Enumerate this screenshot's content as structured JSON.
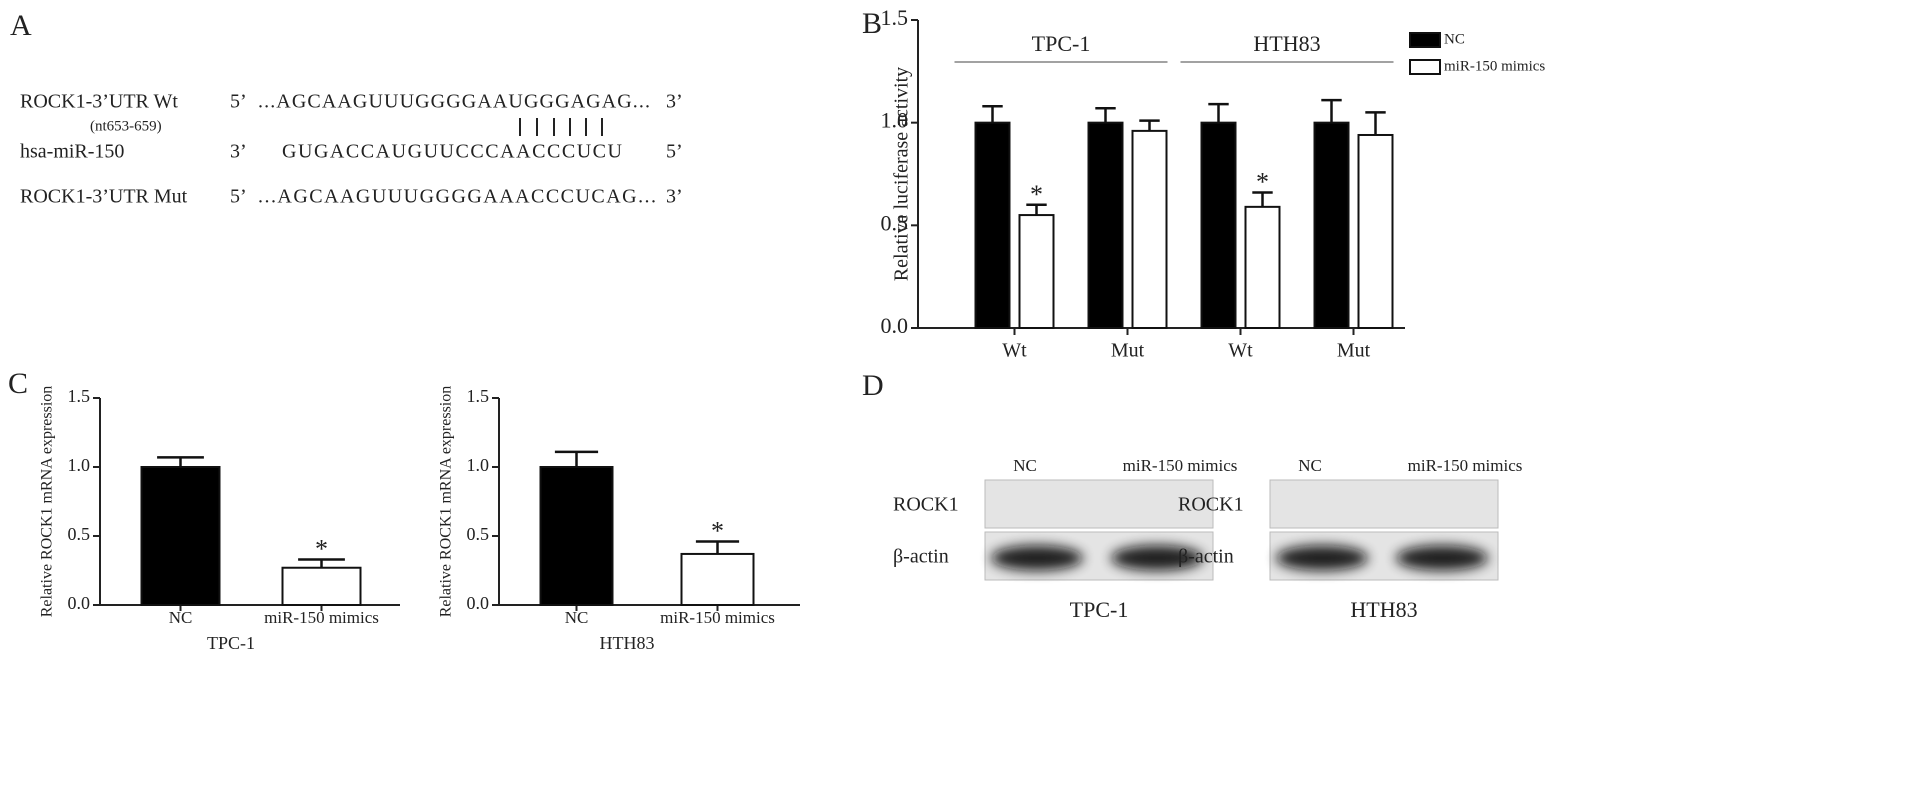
{
  "panel_labels": {
    "A": "A",
    "B": "B",
    "C": "C",
    "D": "D"
  },
  "sequences": [
    {
      "name": "ROCK1-3’UTR Wt",
      "position": "(nt653-659)",
      "end5": "5’",
      "seq": "...AGCAAGUUUGGGGAAUGGGAGAG...",
      "end3": "3’"
    },
    {
      "name": "hsa-miR-150",
      "end5": "3’",
      "seq": "GUGACCAUGUUCCCAACCCUCU",
      "end3": "5’"
    },
    {
      "name": "ROCK1-3’UTR Mut",
      "end5": "5’",
      "seq": "...AGCAAGUUUGGGGAAACCCUCAG...",
      "end3": "3’"
    }
  ],
  "chart_data": [
    {
      "type": "grouped_bar",
      "ylabel": "Relative luciferase activity",
      "groups": [
        {
          "name": "TPC-1",
          "categories": [
            "Wt",
            "Mut"
          ]
        },
        {
          "name": "HTH83",
          "categories": [
            "Wt",
            "Mut"
          ]
        }
      ],
      "series": [
        {
          "name": "NC",
          "color": "#000000",
          "values": [
            1.0,
            1.0,
            1.0,
            1.0
          ],
          "errors": [
            0.08,
            0.07,
            0.09,
            0.11
          ],
          "significance": [
            null,
            null,
            null,
            null
          ]
        },
        {
          "name": "miR-150 mimics",
          "color": "#ffffff",
          "values": [
            0.55,
            0.96,
            0.59,
            0.94
          ],
          "errors": [
            0.05,
            0.05,
            0.07,
            0.11
          ],
          "significance": [
            "*",
            null,
            "*",
            null
          ]
        }
      ],
      "ylim": [
        0,
        1.5
      ],
      "yticks": [
        {
          "value": 0,
          "label": "0.0"
        },
        0.5,
        {
          "value": 1,
          "label": "1.0"
        },
        1.5
      ],
      "legend": "top-right"
    },
    {
      "type": "bar",
      "ylabel": "Relative ROCK1 mRNA expression",
      "xlabel": "TPC-1",
      "categories": [
        "NC",
        "miR-150 mimics"
      ],
      "values": [
        1.0,
        0.27
      ],
      "errors": [
        0.07,
        0.06
      ],
      "significance": [
        null,
        "*"
      ],
      "colors": [
        "#000000",
        "#ffffff"
      ],
      "ylim": [
        0,
        1.5
      ],
      "yticks": [
        {
          "value": 0,
          "label": "0.0"
        },
        0.5,
        {
          "value": 1,
          "label": "1.0"
        },
        1.5
      ]
    },
    {
      "type": "bar",
      "ylabel": "Relative ROCK1 mRNA expression",
      "xlabel": "HTH83",
      "categories": [
        "NC",
        "miR-150 mimics"
      ],
      "values": [
        1.0,
        0.37
      ],
      "errors": [
        0.11,
        0.09
      ],
      "significance": [
        null,
        "*"
      ],
      "colors": [
        "#000000",
        "#ffffff"
      ],
      "ylim": [
        0,
        1.5
      ],
      "yticks": [
        {
          "value": 0,
          "label": "0.0"
        },
        0.5,
        {
          "value": 1,
          "label": "1.0"
        },
        1.5
      ]
    }
  ],
  "blots": [
    {
      "cell": "TPC-1",
      "lanes": [
        "NC",
        "miR-150 mimics"
      ],
      "rows": [
        "ROCK1",
        "β-actin"
      ]
    },
    {
      "cell": "HTH83",
      "lanes": [
        "NC",
        "miR-150 mimics"
      ],
      "rows": [
        "ROCK1",
        "β-actin"
      ]
    }
  ]
}
